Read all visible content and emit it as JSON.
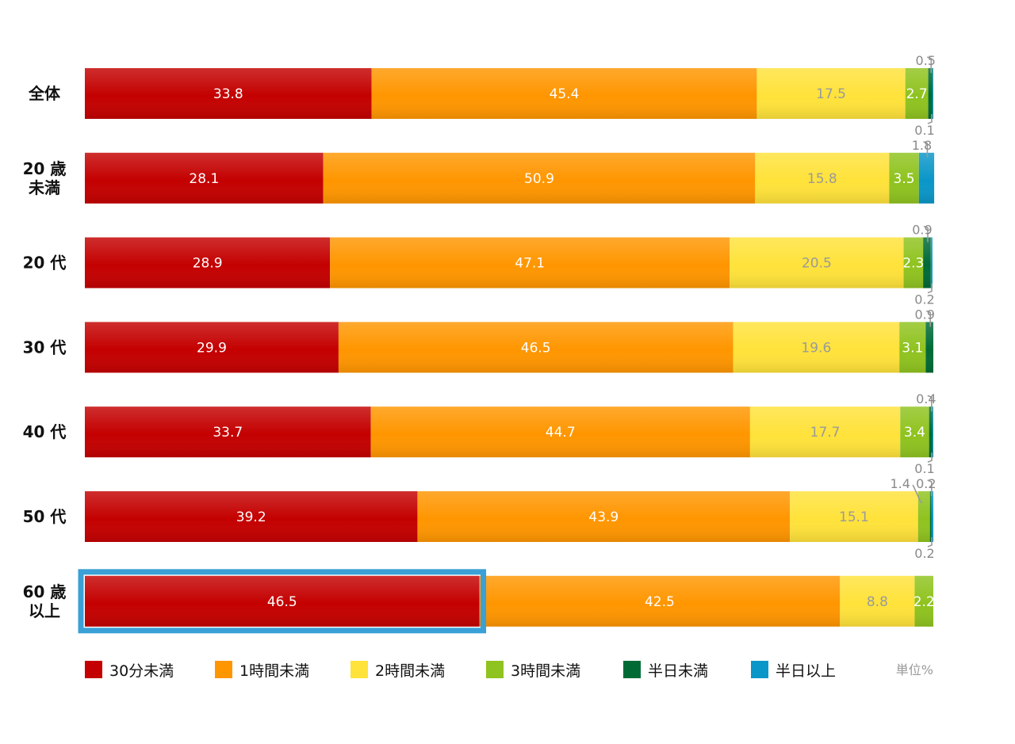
{
  "chart_data": {
    "type": "bar",
    "orientation": "horizontal",
    "stacked": true,
    "percent_stacked": true,
    "unit": "単位%",
    "categories": [
      "全体",
      "20歳未満",
      "20代",
      "30代",
      "40代",
      "50代",
      "60歳以上"
    ],
    "category_lines": [
      [
        "全体"
      ],
      [
        "20 歳",
        "未満"
      ],
      [
        "20 代"
      ],
      [
        "30 代"
      ],
      [
        "40 代"
      ],
      [
        "50 代"
      ],
      [
        "60 歳",
        "以上"
      ]
    ],
    "series": [
      {
        "name": "30分未満",
        "color": "#c40000",
        "label_color": "#ffffff",
        "values": [
          33.8,
          28.1,
          28.9,
          29.9,
          33.7,
          39.2,
          46.5
        ]
      },
      {
        "name": "1時間未満",
        "color": "#ff9600",
        "label_color": "#ffffff",
        "values": [
          45.4,
          50.9,
          47.1,
          46.5,
          44.7,
          43.9,
          42.5
        ]
      },
      {
        "name": "2時間未満",
        "color": "#ffe23a",
        "label_color": "#9a9a9a",
        "values": [
          17.5,
          15.8,
          20.5,
          19.6,
          17.7,
          15.1,
          8.8
        ]
      },
      {
        "name": "3時間未満",
        "color": "#8fc31f",
        "label_color": "#ffffff",
        "values": [
          2.7,
          3.5,
          2.3,
          3.1,
          3.4,
          1.4,
          2.2
        ]
      },
      {
        "name": "半日未満",
        "color": "#006a35",
        "label_color": "#ffffff",
        "values": [
          0.5,
          0.0,
          0.9,
          0.9,
          0.4,
          0.2,
          0.0
        ]
      },
      {
        "name": "半日以上",
        "color": "#0a96c8",
        "label_color": "#ffffff",
        "values": [
          0.1,
          1.8,
          0.2,
          0.0,
          0.1,
          0.2,
          0.0
        ]
      }
    ],
    "segment_labels": [
      [
        {
          "series": 0,
          "text": "33.8",
          "mode": "inside"
        },
        {
          "series": 1,
          "text": "45.4",
          "mode": "inside"
        },
        {
          "series": 2,
          "text": "17.5",
          "mode": "inside"
        },
        {
          "series": 3,
          "text": "2.7",
          "mode": "inside"
        },
        {
          "series": 4,
          "text": "0.5",
          "mode": "above"
        },
        {
          "series": 5,
          "text": "0.1",
          "mode": "below"
        }
      ],
      [
        {
          "series": 0,
          "text": "28.1",
          "mode": "inside"
        },
        {
          "series": 1,
          "text": "50.9",
          "mode": "inside"
        },
        {
          "series": 2,
          "text": "15.8",
          "mode": "inside"
        },
        {
          "series": 3,
          "text": "3.5",
          "mode": "inside"
        },
        {
          "series": 5,
          "text": "1.8",
          "mode": "above"
        }
      ],
      [
        {
          "series": 0,
          "text": "28.9",
          "mode": "inside"
        },
        {
          "series": 1,
          "text": "47.1",
          "mode": "inside"
        },
        {
          "series": 2,
          "text": "20.5",
          "mode": "inside"
        },
        {
          "series": 3,
          "text": "2.3",
          "mode": "inside"
        },
        {
          "series": 4,
          "text": "0.9",
          "mode": "above"
        },
        {
          "series": 5,
          "text": "0.2",
          "mode": "below"
        }
      ],
      [
        {
          "series": 0,
          "text": "29.9",
          "mode": "inside"
        },
        {
          "series": 1,
          "text": "46.5",
          "mode": "inside"
        },
        {
          "series": 2,
          "text": "19.6",
          "mode": "inside"
        },
        {
          "series": 3,
          "text": "3.1",
          "mode": "inside"
        },
        {
          "series": 4,
          "text": "0.9",
          "mode": "above"
        }
      ],
      [
        {
          "series": 0,
          "text": "33.7",
          "mode": "inside"
        },
        {
          "series": 1,
          "text": "44.7",
          "mode": "inside"
        },
        {
          "series": 2,
          "text": "17.7",
          "mode": "inside"
        },
        {
          "series": 3,
          "text": "3.4",
          "mode": "inside"
        },
        {
          "series": 4,
          "text": "0.4",
          "mode": "above"
        },
        {
          "series": 5,
          "text": "0.1",
          "mode": "below"
        }
      ],
      [
        {
          "series": 0,
          "text": "39.2",
          "mode": "inside"
        },
        {
          "series": 1,
          "text": "43.9",
          "mode": "inside"
        },
        {
          "series": 2,
          "text": "15.1",
          "mode": "inside"
        },
        {
          "series": 3,
          "text": "1.4",
          "mode": "above-left"
        },
        {
          "series": 4,
          "text": "0.2",
          "mode": "above"
        },
        {
          "series": 5,
          "text": "0.2",
          "mode": "below"
        }
      ],
      [
        {
          "series": 0,
          "text": "46.5",
          "mode": "inside"
        },
        {
          "series": 1,
          "text": "42.5",
          "mode": "inside"
        },
        {
          "series": 2,
          "text": "8.8",
          "mode": "inside"
        },
        {
          "series": 3,
          "text": "2.2",
          "mode": "inside"
        }
      ]
    ],
    "highlight": {
      "category": "60歳以上",
      "series": "30分未満",
      "border_color": "#3aa0d6"
    },
    "legend": {
      "position": "bottom"
    },
    "xlim": [
      0,
      100
    ],
    "grid": false
  }
}
